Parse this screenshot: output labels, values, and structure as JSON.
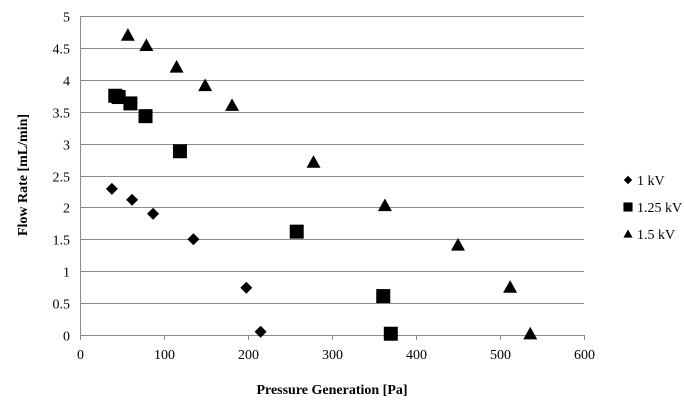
{
  "chart_data": {
    "type": "scatter",
    "title": "",
    "xlabel": "Pressure Generation [Pa]",
    "ylabel": "Flow Rate [mL/min]",
    "xlim": [
      0,
      600
    ],
    "ylim": [
      0,
      5
    ],
    "xticks": [
      0,
      100,
      200,
      300,
      400,
      500,
      600
    ],
    "yticks": [
      0,
      0.5,
      1,
      1.5,
      2,
      2.5,
      3,
      3.5,
      4,
      4.5,
      5
    ],
    "grid": "horizontal",
    "legend_position": "right",
    "series": [
      {
        "name": "1 kV",
        "marker": "diamond",
        "color": "#000000",
        "points": [
          [
            38,
            2.29
          ],
          [
            62,
            2.12
          ],
          [
            87,
            1.9
          ],
          [
            135,
            1.5
          ],
          [
            198,
            0.74
          ],
          [
            215,
            0.05
          ]
        ]
      },
      {
        "name": "1.25 kV",
        "marker": "square",
        "color": "#000000",
        "points": [
          [
            42,
            3.75
          ],
          [
            46,
            3.73
          ],
          [
            60,
            3.63
          ],
          [
            78,
            3.43
          ],
          [
            119,
            2.88
          ],
          [
            258,
            1.62
          ],
          [
            361,
            0.61
          ],
          [
            370,
            0.02
          ]
        ]
      },
      {
        "name": "1.5 kV",
        "marker": "triangle",
        "color": "#000000",
        "points": [
          [
            57,
            4.7
          ],
          [
            79,
            4.54
          ],
          [
            115,
            4.2
          ],
          [
            149,
            3.91
          ],
          [
            181,
            3.6
          ],
          [
            278,
            2.71
          ],
          [
            363,
            2.03
          ],
          [
            450,
            1.41
          ],
          [
            512,
            0.75
          ],
          [
            536,
            0.02
          ]
        ]
      }
    ]
  }
}
